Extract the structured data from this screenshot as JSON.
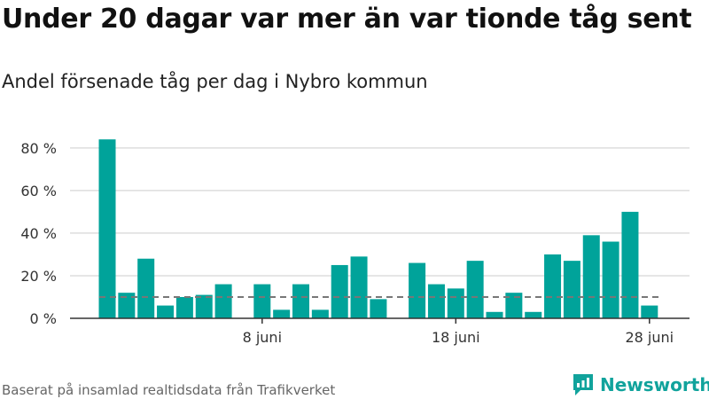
{
  "title": "Under 20 dagar var mer än var tionde tåg sent",
  "subtitle": "Andel försenade tåg per dag i Nybro kommun",
  "footer": "Baserat på insamlad realtidsdata från Trafikverket",
  "brand": "Newsworthy",
  "colors": {
    "bar": "#00a39a",
    "grid": "#dddddd",
    "reference": "#777777",
    "brand": "#11a39c"
  },
  "chart_data": {
    "type": "bar",
    "x": [
      "2024-05-31",
      "2024-06-01",
      "2024-06-02",
      "2024-06-03",
      "2024-06-04",
      "2024-06-05",
      "2024-06-06",
      "2024-06-07",
      "2024-06-08",
      "2024-06-09",
      "2024-06-10",
      "2024-06-11",
      "2024-06-12",
      "2024-06-13",
      "2024-06-14",
      "2024-06-15",
      "2024-06-16",
      "2024-06-17",
      "2024-06-18",
      "2024-06-19",
      "2024-06-20",
      "2024-06-21",
      "2024-06-22",
      "2024-06-23",
      "2024-06-24",
      "2024-06-25",
      "2024-06-26",
      "2024-06-27",
      "2024-06-28",
      "2024-06-29"
    ],
    "values": [
      84,
      12,
      28,
      6,
      10,
      11,
      16,
      0,
      16,
      4,
      16,
      4,
      25,
      29,
      9,
      0,
      26,
      16,
      14,
      27,
      3,
      12,
      3,
      30,
      27,
      39,
      36,
      50,
      6,
      null
    ],
    "reference_line": 10,
    "ylim": [
      0,
      87
    ],
    "y_ticks": [
      0,
      20,
      40,
      60,
      80
    ],
    "y_tick_labels": [
      "0 %",
      "20 %",
      "40 %",
      "60 %",
      "80 %"
    ],
    "x_ticks": [
      "2024-06-08",
      "2024-06-18",
      "2024-06-28"
    ],
    "x_tick_labels": [
      "8 juni",
      "18 juni",
      "28 juni"
    ],
    "grid": true,
    "legend": false
  }
}
